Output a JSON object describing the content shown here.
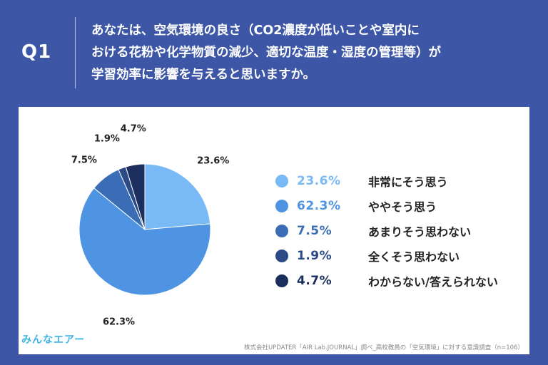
{
  "header": {
    "q_label": "Q1",
    "question": "あなたは、空気環境の良さ（CO2濃度が低いことや室内に\nおける花粉や化学物質の減少、適切な温度・湿度の管理等）が\n学習効率に影響を与えると思いますか。"
  },
  "chart_data": {
    "type": "pie",
    "title": "",
    "start_angle_deg": 0,
    "direction": "clockwise",
    "slices": [
      {
        "label": "非常にそう思う",
        "value": 23.6,
        "display": "23.6%",
        "color": "#78b9f6"
      },
      {
        "label": "ややそう思う",
        "value": 62.3,
        "display": "62.3%",
        "color": "#4f94e3"
      },
      {
        "label": "あまりそう思わない",
        "value": 7.5,
        "display": "7.5%",
        "color": "#3a6db5"
      },
      {
        "label": "全くそう思わない",
        "value": 1.9,
        "display": "1.9%",
        "color": "#2b4a86"
      },
      {
        "label": "わからない/答えられない",
        "value": 4.7,
        "display": "4.7%",
        "color": "#1c2e5e"
      }
    ],
    "legend_position": "right"
  },
  "footer": {
    "logo": "みんなエアー",
    "source": "株式会社UPDATER「AIR Lab.JOURNAL」調べ_高校教員の「空気環境」に対する意識調査（n=106）"
  }
}
